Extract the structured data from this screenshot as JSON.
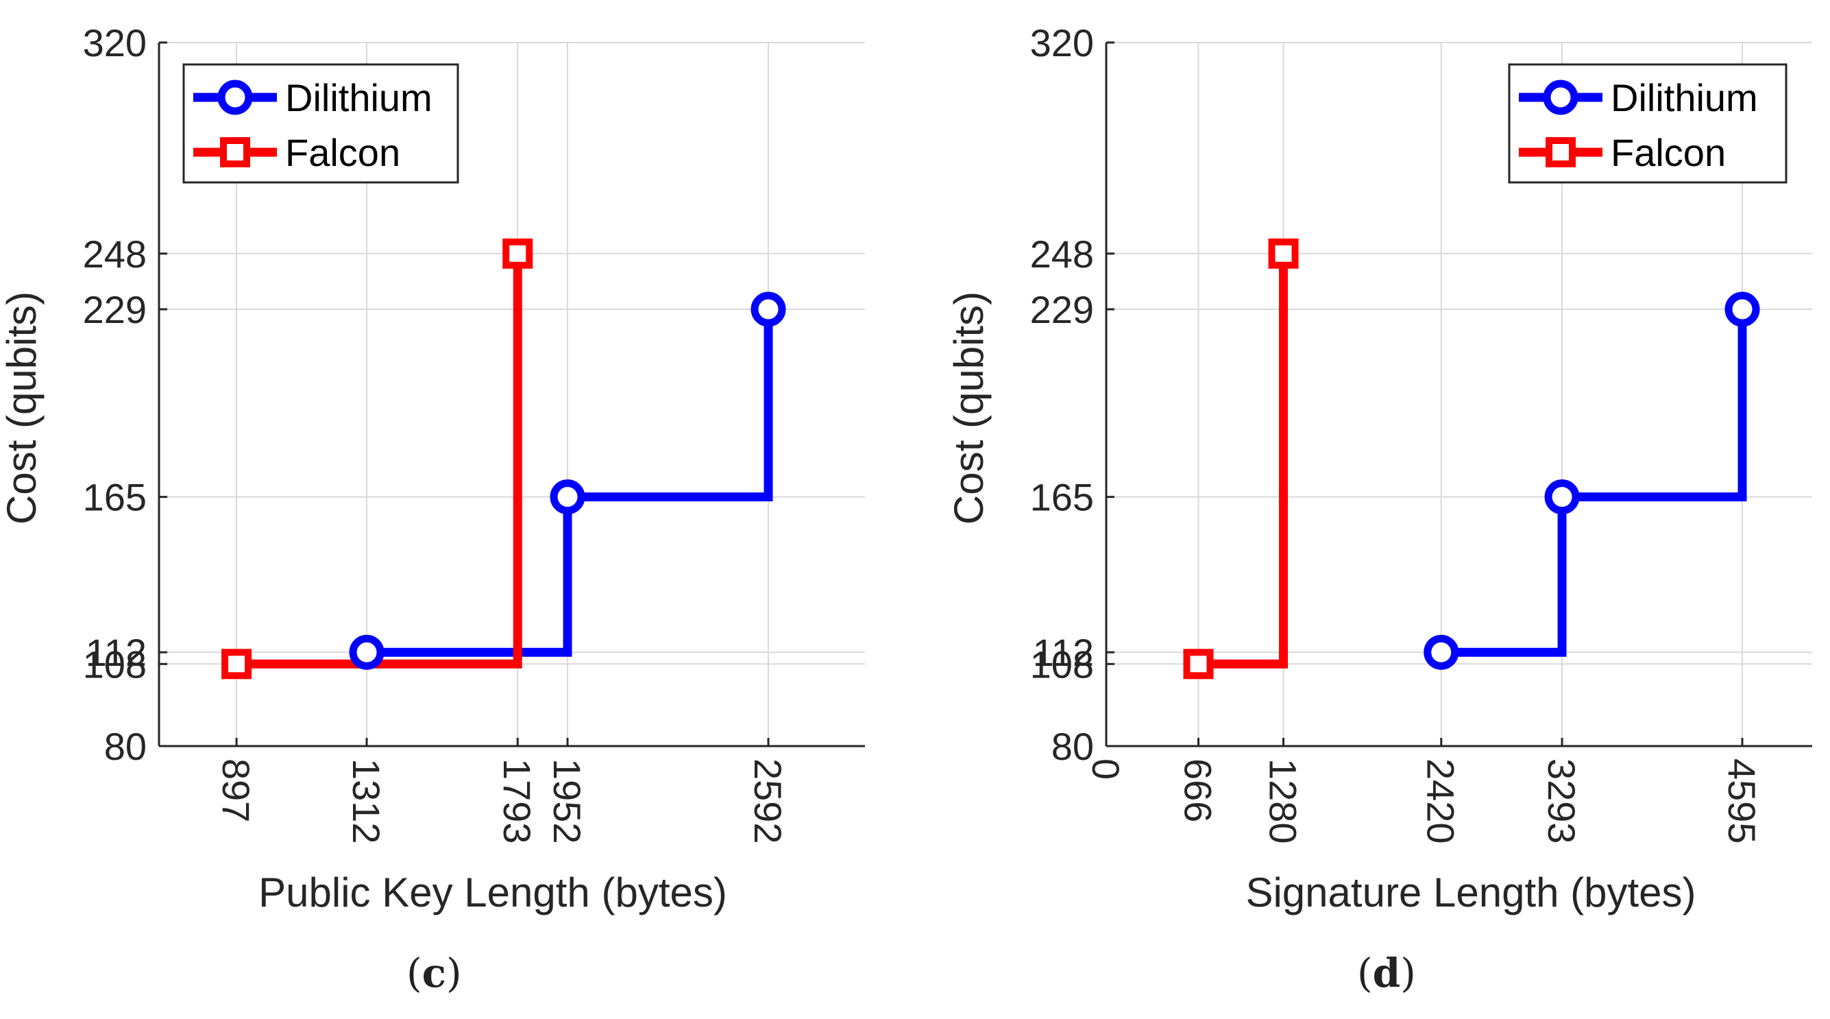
{
  "colors": {
    "dilithium": "#0000ff",
    "falcon": "#ff0000",
    "grid": "#d9d9d9",
    "axis": "#262626",
    "text": "#262626"
  },
  "chart_data": [
    {
      "type": "line",
      "step": "post",
      "panel": {
        "prefix": "(",
        "letter": "c",
        "suffix": ")"
      },
      "xlabel": "Public Key Length (bytes)",
      "ylabel": "Cost (qubits)",
      "xlim": [
        650,
        2900
      ],
      "ylim": [
        80,
        320
      ],
      "xticks": [
        897,
        1312,
        1793,
        1952,
        2592
      ],
      "yticks": [
        80,
        108,
        112,
        165,
        229,
        248,
        320
      ],
      "legend_position": "top-left",
      "series": [
        {
          "name": "Dilithium",
          "marker": "circle",
          "color": "#0000ff",
          "points": [
            [
              1312,
              112
            ],
            [
              1952,
              165
            ],
            [
              2592,
              229
            ]
          ],
          "step_path": [
            [
              1312,
              112
            ],
            [
              1952,
              112
            ],
            [
              1952,
              165
            ],
            [
              2592,
              165
            ],
            [
              2592,
              229
            ]
          ]
        },
        {
          "name": "Falcon",
          "marker": "square",
          "color": "#ff0000",
          "points": [
            [
              897,
              108
            ],
            [
              1793,
              248
            ]
          ],
          "step_path": [
            [
              897,
              108
            ],
            [
              1793,
              108
            ],
            [
              1793,
              248
            ]
          ]
        }
      ]
    },
    {
      "type": "line",
      "step": "post",
      "panel": {
        "prefix": "(",
        "letter": "d",
        "suffix": ")"
      },
      "xlabel": "Signature Length (bytes)",
      "ylabel": "Cost (qubits)",
      "xlim": [
        0,
        5100
      ],
      "ylim": [
        80,
        320
      ],
      "xticks": [
        0,
        666,
        1280,
        2420,
        3293,
        4595
      ],
      "yticks": [
        80,
        108,
        112,
        165,
        229,
        248,
        320
      ],
      "legend_position": "top-right",
      "series": [
        {
          "name": "Dilithium",
          "marker": "circle",
          "color": "#0000ff",
          "points": [
            [
              2420,
              112
            ],
            [
              3293,
              165
            ],
            [
              4595,
              229
            ]
          ],
          "step_path": [
            [
              2420,
              112
            ],
            [
              3293,
              112
            ],
            [
              3293,
              165
            ],
            [
              4595,
              165
            ],
            [
              4595,
              229
            ]
          ]
        },
        {
          "name": "Falcon",
          "marker": "square",
          "color": "#ff0000",
          "points": [
            [
              666,
              108
            ],
            [
              1280,
              248
            ]
          ],
          "step_path": [
            [
              666,
              108
            ],
            [
              1280,
              108
            ],
            [
              1280,
              248
            ]
          ]
        }
      ]
    }
  ]
}
